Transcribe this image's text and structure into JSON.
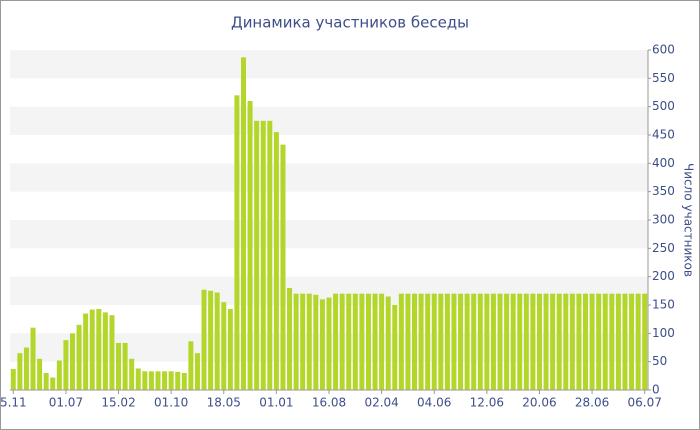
{
  "chart_data": {
    "type": "bar",
    "title": "Динамика участников беседы",
    "y_label": "Число участников",
    "categories": [
      "5.11",
      null,
      null,
      null,
      null,
      null,
      null,
      null,
      "01.07",
      null,
      null,
      null,
      null,
      null,
      null,
      null,
      "15.02",
      null,
      null,
      null,
      null,
      null,
      null,
      null,
      "01.10",
      null,
      null,
      null,
      null,
      null,
      null,
      null,
      "18.05",
      null,
      null,
      null,
      null,
      null,
      null,
      null,
      "01.01",
      null,
      null,
      null,
      null,
      null,
      null,
      null,
      "16.08",
      null,
      null,
      null,
      null,
      null,
      null,
      null,
      "02.04",
      null,
      null,
      null,
      null,
      null,
      null,
      null,
      "04.06",
      null,
      null,
      null,
      null,
      null,
      null,
      null,
      "12.06",
      null,
      null,
      null,
      null,
      null,
      null,
      null,
      "20.06",
      null,
      null,
      null,
      null,
      null,
      null,
      null,
      "28.06",
      null,
      null,
      null,
      null,
      null,
      null,
      null,
      "06.07"
    ],
    "values": [
      37,
      65,
      75,
      110,
      55,
      30,
      22,
      52,
      88,
      100,
      115,
      135,
      142,
      143,
      137,
      132,
      83,
      83,
      55,
      38,
      33,
      33,
      33,
      33,
      33,
      32,
      30,
      86,
      65,
      177,
      175,
      172,
      155,
      143,
      520,
      587,
      510,
      475,
      475,
      475,
      455,
      433,
      180,
      170,
      170,
      170,
      168,
      160,
      163,
      170,
      170,
      170,
      170,
      170,
      170,
      170,
      170,
      165,
      150,
      170,
      170,
      170,
      170,
      170,
      170,
      170,
      170,
      170,
      170,
      170,
      170,
      170,
      170,
      170,
      170,
      170,
      170,
      170,
      170,
      170,
      170,
      170,
      170,
      170,
      170,
      170,
      170,
      170,
      170,
      170,
      170,
      170,
      170,
      170,
      170,
      170,
      170
    ],
    "color": "#b3d62b",
    "ylim": [
      0,
      600
    ],
    "yticks": [
      0,
      50,
      100,
      150,
      200,
      250,
      300,
      350,
      400,
      450,
      500,
      550,
      600
    ],
    "grid": true
  }
}
